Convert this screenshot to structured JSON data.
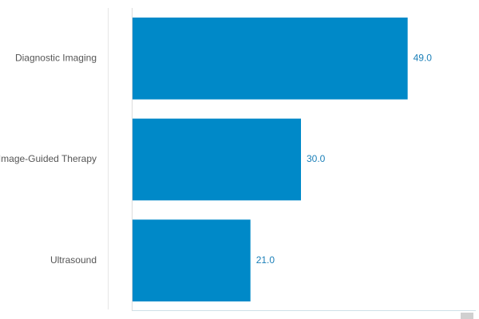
{
  "chart_data": {
    "type": "bar",
    "orientation": "horizontal",
    "categories": [
      "Diagnostic Imaging",
      "Image-Guided Therapy",
      "Ultrasound"
    ],
    "values": [
      49,
      30,
      21
    ],
    "value_labels": [
      "49.0",
      "30.0",
      "21.0"
    ],
    "color": "#0089c8",
    "xlim": [
      0,
      60
    ]
  }
}
